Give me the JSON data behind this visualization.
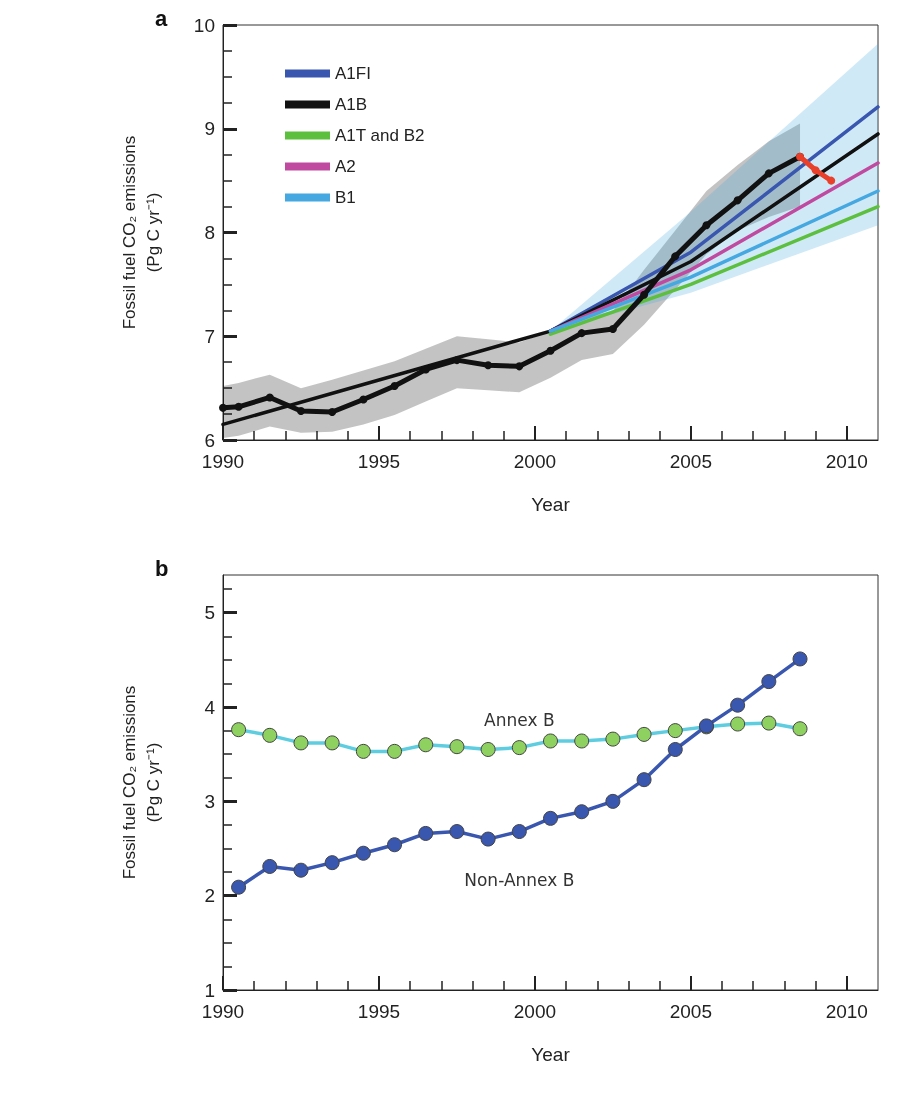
{
  "chart_data": [
    {
      "type": "line",
      "title": "a",
      "xlabel": "Year",
      "ylabel": "Fossil fuel CO₂ emissions\n(Pg C yr⁻¹)",
      "xlim": [
        1990,
        2011
      ],
      "xticks": [
        1990,
        1995,
        2000,
        2005,
        2010
      ],
      "ylim": [
        6,
        10
      ],
      "yticks": [
        6,
        7,
        8,
        9,
        10
      ],
      "grid": false,
      "legend": "top left",
      "series": [
        {
          "color": "#111111",
          "marker": "circle",
          "x": [
            1990,
            1990.5,
            1991.5,
            1992.5,
            1993.5,
            1994.5,
            1995.5,
            1996.5,
            1997.5,
            1998.5,
            1999.5,
            2000.5,
            2001.5,
            2002.5,
            2003.5,
            2004.5,
            2005.5,
            2006.5,
            2007.5,
            2008.5
          ],
          "values": [
            6.31,
            6.32,
            6.41,
            6.28,
            6.27,
            6.39,
            6.52,
            6.68,
            6.77,
            6.72,
            6.71,
            6.86,
            7.03,
            7.07,
            7.4,
            7.77,
            8.07,
            8.31,
            8.57,
            8.73
          ],
          "lower": [
            6.02,
            6.04,
            6.13,
            6.07,
            6.08,
            6.15,
            6.24,
            6.37,
            6.5,
            6.48,
            6.46,
            6.6,
            6.77,
            6.83,
            7.11,
            7.45,
            7.79,
            8.02,
            8.15,
            8.25
          ],
          "upper": [
            6.52,
            6.55,
            6.63,
            6.5,
            6.58,
            6.67,
            6.76,
            6.88,
            7.0,
            6.97,
            6.94,
            7.05,
            7.18,
            7.24,
            7.64,
            8.02,
            8.4,
            8.65,
            8.88,
            9.05
          ]
        },
        {
          "name": "A1FI",
          "color": "#3a57b0",
          "marker": "none",
          "x": [
            2000.5,
            2005,
            2011
          ],
          "values": [
            7.05,
            7.81,
            9.21
          ]
        },
        {
          "name": "A1B",
          "color": "#111111",
          "marker": "none",
          "x": [
            1990,
            2000.5,
            2005,
            2011
          ],
          "values": [
            6.15,
            7.05,
            7.72,
            8.95
          ]
        },
        {
          "name": "A1T and B2",
          "color": "#5cbf3e",
          "marker": "none",
          "x": [
            2000.5,
            2005,
            2011
          ],
          "values": [
            7.02,
            7.5,
            8.25
          ]
        },
        {
          "name": "A2",
          "color": "#c04aa0",
          "marker": "none",
          "x": [
            2000.5,
            2005,
            2011
          ],
          "values": [
            7.05,
            7.64,
            8.67
          ]
        },
        {
          "name": "B1",
          "color": "#45a8e0",
          "marker": "none",
          "x": [
            2000.5,
            2005,
            2011
          ],
          "values": [
            7.05,
            7.57,
            8.4
          ],
          "lower": [
            7.05,
            7.42,
            8.07
          ],
          "upper": [
            7.05,
            8.2,
            9.82
          ]
        },
        {
          "color": "#e8402a",
          "marker": "circle",
          "x": [
            2008.5,
            2009,
            2009.5
          ],
          "values": [
            8.73,
            8.6,
            8.5
          ]
        }
      ]
    },
    {
      "type": "line",
      "title": "b",
      "xlabel": "Year",
      "ylabel": "Fossil fuel CO₂ emissions\n(Pg C yr⁻¹)",
      "xlim": [
        1990,
        2011
      ],
      "xticks": [
        1990,
        1995,
        2000,
        2005,
        2010
      ],
      "ylim": [
        1,
        5.4
      ],
      "yticks": [
        1,
        2,
        3,
        4,
        5
      ],
      "grid": false,
      "marker": "circle",
      "x": [
        1990.5,
        1991.5,
        1992.5,
        1993.5,
        1994.5,
        1995.5,
        1996.5,
        1997.5,
        1998.5,
        1999.5,
        2000.5,
        2001.5,
        2002.5,
        2003.5,
        2004.5,
        2005.5,
        2006.5,
        2007.5,
        2008.5
      ],
      "series": [
        {
          "name": "Annex B",
          "color": "#5fcde0",
          "values": [
            3.76,
            3.7,
            3.62,
            3.62,
            3.53,
            3.53,
            3.6,
            3.58,
            3.55,
            3.57,
            3.64,
            3.64,
            3.66,
            3.71,
            3.75,
            3.79,
            3.82,
            3.83,
            3.77
          ]
        },
        {
          "name": "Non-Annex B",
          "color": "#3a57b0",
          "values": [
            2.09,
            2.31,
            2.27,
            2.35,
            2.45,
            2.54,
            2.66,
            2.68,
            2.6,
            2.68,
            2.82,
            2.89,
            3.0,
            3.23,
            3.55,
            3.8,
            4.02,
            4.27,
            4.51
          ]
        }
      ]
    }
  ]
}
